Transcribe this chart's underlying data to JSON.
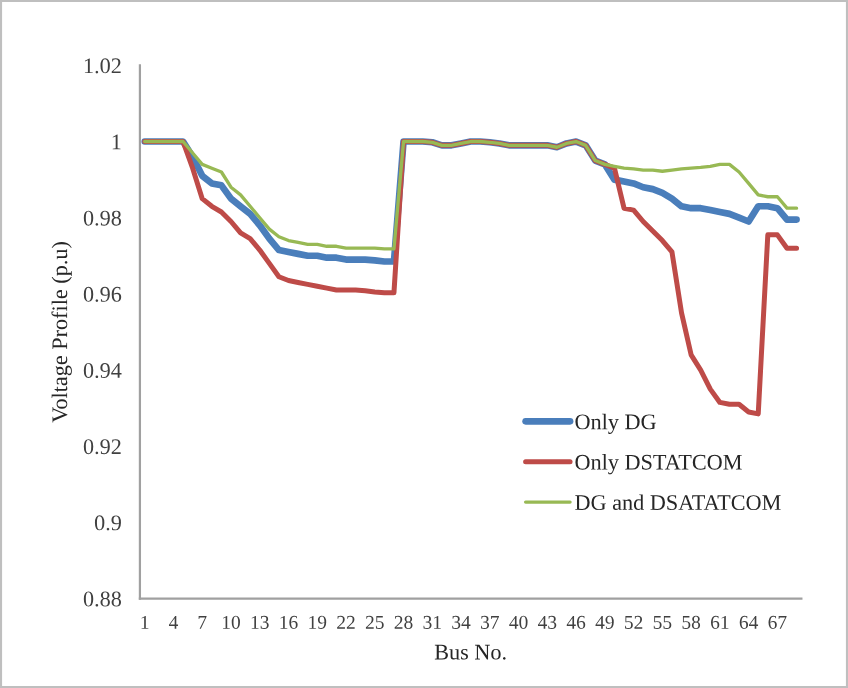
{
  "chart_data": {
    "type": "line",
    "xlabel": "Bus No.",
    "ylabel": "Voltage Profile (p.u)",
    "categories": [
      "1",
      null,
      null,
      "4",
      null,
      null,
      "7",
      null,
      null,
      "10",
      null,
      null,
      "13",
      null,
      null,
      "16",
      null,
      null,
      "19",
      null,
      null,
      "22",
      null,
      null,
      "25",
      null,
      null,
      "28",
      null,
      null,
      "31",
      null,
      null,
      "34",
      null,
      null,
      "37",
      null,
      null,
      "40",
      null,
      null,
      "43",
      null,
      null,
      "46",
      null,
      null,
      "49",
      null,
      null,
      "52",
      null,
      null,
      "55",
      null,
      null,
      "58",
      null,
      null,
      "61",
      null,
      null,
      "64",
      null,
      null,
      "67",
      null,
      null
    ],
    "ylim": [
      0.88,
      1.02
    ],
    "yticks": [
      0.88,
      0.9,
      0.92,
      0.94,
      0.96,
      0.98,
      1,
      1.02
    ],
    "grid": false,
    "legend": "bottom right",
    "marker": "none",
    "line_style": "solid",
    "series": [
      {
        "name": "Only DG",
        "color": "#4a7ebb",
        "values": [
          1,
          1,
          1,
          1,
          1,
          0.996,
          0.991,
          0.989,
          0.9885,
          0.985,
          0.983,
          0.981,
          0.978,
          0.9745,
          0.9715,
          0.971,
          0.9705,
          0.97,
          0.97,
          0.9695,
          0.9695,
          0.969,
          0.969,
          0.969,
          0.9688,
          0.9685,
          0.9685,
          1,
          1,
          1,
          0.9998,
          0.999,
          0.999,
          0.9995,
          1,
          1,
          0.9998,
          0.9995,
          0.999,
          0.999,
          0.999,
          0.999,
          0.999,
          0.9985,
          0.9995,
          1,
          0.999,
          0.995,
          0.994,
          0.99,
          0.9895,
          0.989,
          0.988,
          0.9875,
          0.9865,
          0.985,
          0.983,
          0.9825,
          0.9825,
          0.982,
          0.9815,
          0.981,
          0.98,
          0.979,
          0.983,
          0.983,
          0.9825,
          0.9795,
          0.9795
        ]
      },
      {
        "name": "Only DSTATCOM",
        "color": "#be4b48",
        "values": [
          1,
          1,
          1,
          1,
          1,
          0.993,
          0.985,
          0.983,
          0.9815,
          0.979,
          0.976,
          0.9745,
          0.9715,
          0.968,
          0.9645,
          0.9635,
          0.963,
          0.9625,
          0.962,
          0.9615,
          0.961,
          0.961,
          0.961,
          0.9608,
          0.9605,
          0.9603,
          0.9603,
          1,
          1,
          1,
          0.9998,
          0.999,
          0.999,
          0.9995,
          1,
          1,
          0.9998,
          0.9995,
          0.999,
          0.999,
          0.999,
          0.999,
          0.999,
          0.9985,
          0.9995,
          1,
          0.999,
          0.995,
          0.994,
          0.993,
          0.9825,
          0.982,
          0.979,
          0.9765,
          0.974,
          0.971,
          0.955,
          0.944,
          0.94,
          0.935,
          0.9315,
          0.931,
          0.931,
          0.929,
          0.9285,
          0.9755,
          0.9755,
          0.972,
          0.972
        ]
      },
      {
        "name": "DG and DSATATCOM",
        "color": "#98b954",
        "values": [
          1,
          1,
          1,
          1,
          1,
          0.997,
          0.994,
          0.993,
          0.992,
          0.988,
          0.986,
          0.983,
          0.98,
          0.977,
          0.975,
          0.974,
          0.9735,
          0.973,
          0.973,
          0.9725,
          0.9725,
          0.972,
          0.972,
          0.972,
          0.972,
          0.9718,
          0.9718,
          1,
          1,
          1,
          0.9998,
          0.999,
          0.999,
          0.9995,
          1,
          1,
          0.9998,
          0.9995,
          0.999,
          0.999,
          0.999,
          0.999,
          0.999,
          0.9985,
          0.9995,
          1,
          0.999,
          0.995,
          0.994,
          0.9935,
          0.993,
          0.9928,
          0.9925,
          0.9925,
          0.9922,
          0.9925,
          0.9928,
          0.993,
          0.9932,
          0.9935,
          0.994,
          0.994,
          0.992,
          0.989,
          0.986,
          0.9855,
          0.9855,
          0.9825,
          0.9825
        ]
      }
    ]
  }
}
